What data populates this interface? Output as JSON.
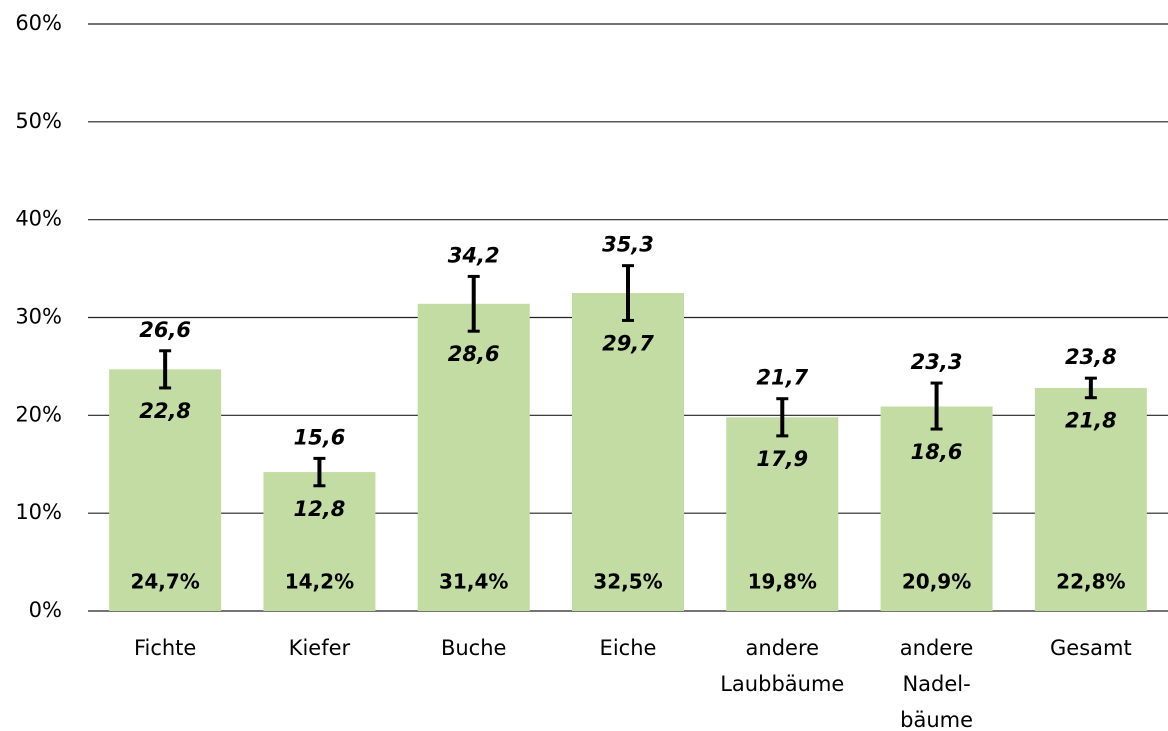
{
  "chart_data": {
    "type": "bar",
    "categories": [
      [
        "Fichte"
      ],
      [
        "Kiefer"
      ],
      [
        "Buche"
      ],
      [
        "Eiche"
      ],
      [
        "andere",
        "Laubbäume"
      ],
      [
        "andere",
        "Nadel-",
        "bäume"
      ],
      [
        "Gesamt"
      ]
    ],
    "values": [
      24.7,
      14.2,
      31.4,
      32.5,
      19.8,
      20.9,
      22.8
    ],
    "value_labels": [
      "24,7%",
      "14,2%",
      "31,4%",
      "32,5%",
      "19,8%",
      "20,9%",
      "22,8%"
    ],
    "error_low": [
      22.8,
      12.8,
      28.6,
      29.7,
      17.9,
      18.6,
      21.8
    ],
    "error_low_labels": [
      "22,8",
      "12,8",
      "28,6",
      "29,7",
      "17,9",
      "18,6",
      "21,8"
    ],
    "error_high": [
      26.6,
      15.6,
      34.2,
      35.3,
      21.7,
      23.3,
      23.8
    ],
    "error_high_labels": [
      "26,6",
      "15,6",
      "34,2",
      "35,3",
      "21,7",
      "23,3",
      "23,8"
    ],
    "color": "#c3dca3",
    "ylim": [
      0,
      60
    ],
    "yticks": [
      {
        "value": 0,
        "label": "0%"
      },
      {
        "value": 10,
        "label": "10%"
      },
      {
        "value": 20,
        "label": "20%"
      },
      {
        "value": 30,
        "label": "30%"
      },
      {
        "value": 40,
        "label": "40%"
      },
      {
        "value": 50,
        "label": "50%"
      },
      {
        "value": 60,
        "label": "60%"
      }
    ],
    "grid": true
  }
}
